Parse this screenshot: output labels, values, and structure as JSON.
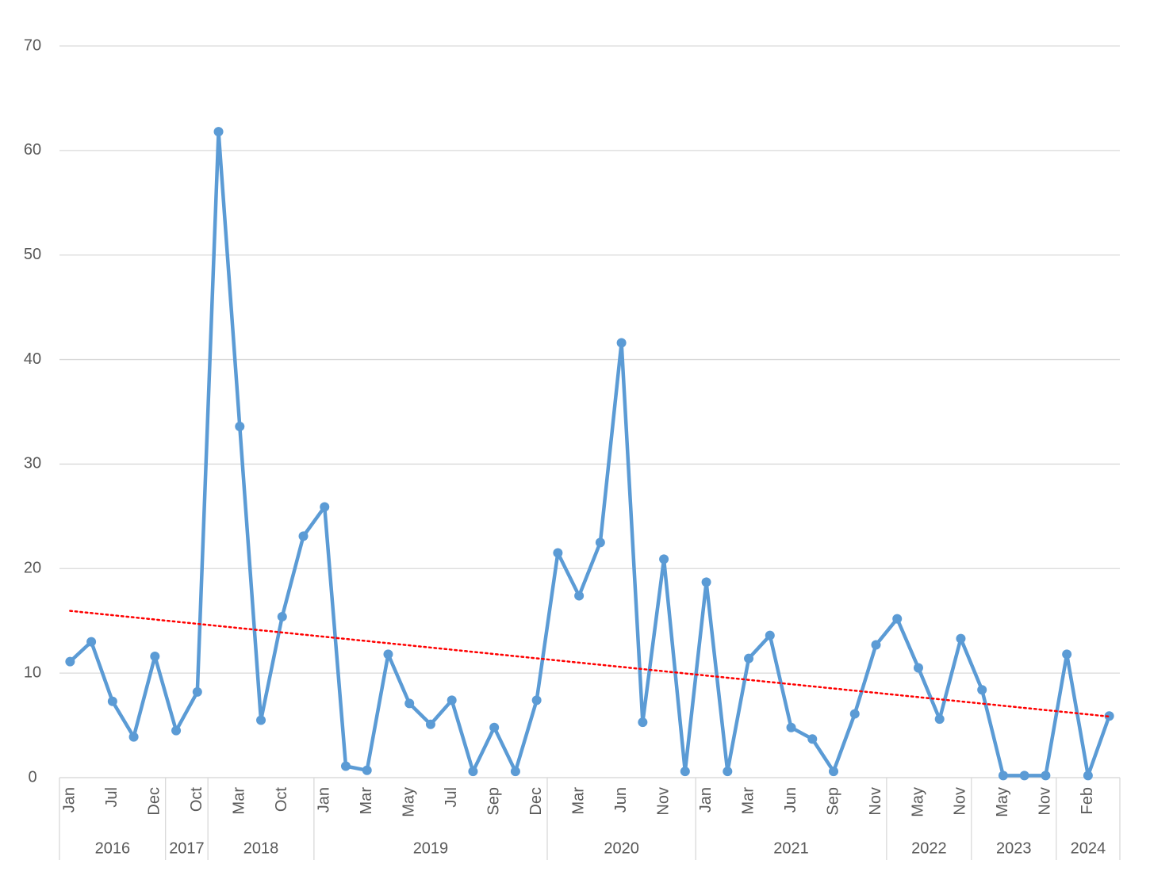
{
  "chart_data": {
    "type": "line",
    "categories": [
      "Jan",
      null,
      "Jul",
      null,
      "Dec",
      null,
      "Oct",
      null,
      "Mar",
      null,
      "Oct",
      null,
      "Jan",
      null,
      "Mar",
      null,
      "May",
      null,
      "Jul",
      null,
      "Sep",
      null,
      "Dec",
      null,
      "Mar",
      null,
      "Jun",
      null,
      "Nov",
      null,
      "Jan",
      null,
      "Mar",
      null,
      "Jun",
      null,
      "Sep",
      null,
      "Nov",
      null,
      "May",
      null,
      "Nov",
      null,
      "May",
      null,
      "Nov",
      null,
      "Feb",
      null
    ],
    "category_groups": [
      {
        "label": "2016",
        "span": 5
      },
      {
        "label": "2017",
        "span": 2
      },
      {
        "label": "2018",
        "span": 5
      },
      {
        "label": "2019",
        "span": 11
      },
      {
        "label": "2020",
        "span": 7
      },
      {
        "label": "2021",
        "span": 9
      },
      {
        "label": "2022",
        "span": 4
      },
      {
        "label": "2023",
        "span": 4
      },
      {
        "label": "2024",
        "span": 3
      }
    ],
    "values": [
      11.1,
      13.0,
      7.3,
      3.9,
      11.6,
      4.5,
      8.2,
      61.8,
      33.6,
      5.5,
      15.4,
      23.1,
      25.9,
      1.1,
      0.7,
      11.8,
      7.1,
      5.1,
      7.4,
      0.6,
      4.8,
      0.6,
      7.4,
      21.5,
      17.4,
      22.5,
      41.6,
      5.3,
      20.9,
      0.6,
      18.7,
      0.6,
      11.4,
      13.6,
      4.8,
      3.7,
      0.6,
      6.1,
      12.7,
      15.2,
      10.5,
      5.6,
      13.3,
      8.4,
      0.2,
      0.2,
      0.2,
      11.8,
      0.2,
      5.9
    ],
    "color": "#5b9bd5",
    "trendline": {
      "kind": "linear",
      "color": "#ff0000"
    },
    "ylim": [
      0,
      70
    ],
    "yticks": [
      0,
      10,
      20,
      30,
      40,
      50,
      60,
      70
    ],
    "grid": true
  }
}
